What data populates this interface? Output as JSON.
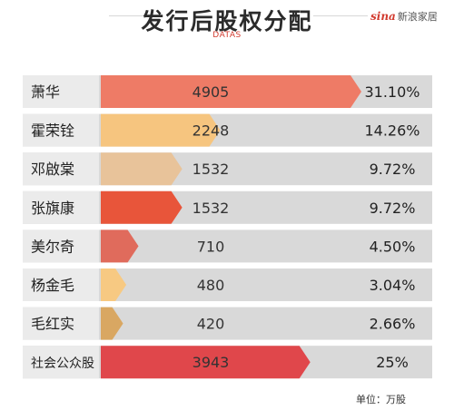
{
  "header": {
    "title": "发行后股权分配",
    "subtitle": "DATAS",
    "logo_brand": "sina",
    "logo_tail": "新浪家居"
  },
  "footer": {
    "unit_label": "单位：万股"
  },
  "chart_data": {
    "type": "bar",
    "orientation": "horizontal",
    "title": "发行后股权分配",
    "unit": "万股",
    "categories": [
      "萧华",
      "霍荣铨",
      "邓啟棠",
      "张旗康",
      "美尔奇",
      "杨金毛",
      "毛红实",
      "社会公众股"
    ],
    "values": [
      4905,
      2248,
      1532,
      1532,
      710,
      480,
      420,
      3943
    ],
    "percent_labels": [
      "31.10%",
      "14.26%",
      "9.72%",
      "9.72%",
      "4.50%",
      "3.04%",
      "2.66%",
      "25%"
    ],
    "colors": [
      "#ee7b66",
      "#f6c57f",
      "#e8c39a",
      "#e8553a",
      "#e06b5c",
      "#f7c982",
      "#d9a762",
      "#e0474b"
    ],
    "xlim": [
      0,
      4905
    ],
    "grid": false,
    "legend": "none"
  }
}
